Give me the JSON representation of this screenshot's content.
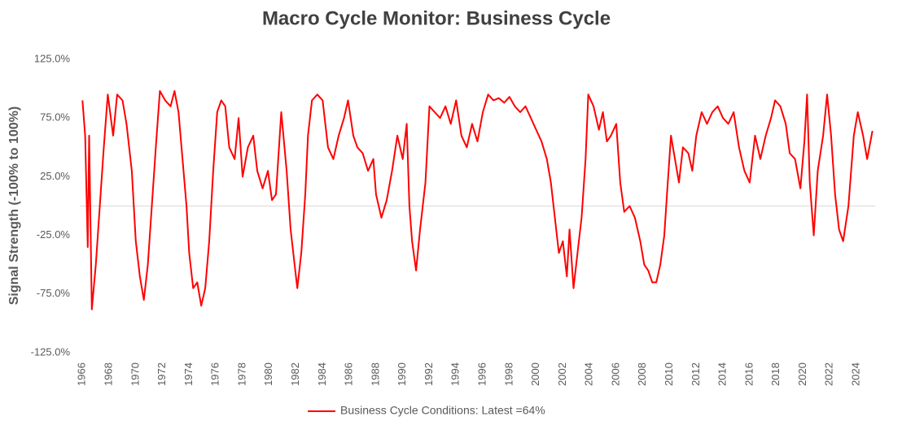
{
  "chart_data": {
    "type": "line",
    "title": "Macro Cycle Monitor: Business Cycle",
    "y_label": "Signal Strength (-100% to 100%)",
    "legend": "bottom",
    "series": [
      {
        "name": "Business Cycle Conditions: Latest =64%",
        "color": "#ff0000",
        "x": [
          1966.0,
          1966.2,
          1966.4,
          1966.5,
          1966.7,
          1967.0,
          1967.3,
          1967.6,
          1967.9,
          1968.3,
          1968.6,
          1969.0,
          1969.3,
          1969.7,
          1970.0,
          1970.3,
          1970.6,
          1970.9,
          1971.2,
          1971.5,
          1971.8,
          1972.2,
          1972.6,
          1972.9,
          1973.2,
          1973.5,
          1973.8,
          1974.0,
          1974.3,
          1974.6,
          1974.9,
          1975.2,
          1975.5,
          1975.8,
          1976.1,
          1976.4,
          1976.7,
          1977.0,
          1977.4,
          1977.7,
          1978.0,
          1978.4,
          1978.8,
          1979.1,
          1979.5,
          1979.9,
          1980.2,
          1980.5,
          1980.9,
          1981.3,
          1981.6,
          1981.9,
          1982.1,
          1982.4,
          1982.7,
          1982.9,
          1983.2,
          1983.6,
          1984.0,
          1984.4,
          1984.8,
          1985.2,
          1985.6,
          1985.9,
          1986.3,
          1986.6,
          1987.0,
          1987.4,
          1987.8,
          1988.0,
          1988.4,
          1988.8,
          1989.2,
          1989.6,
          1990.0,
          1990.3,
          1990.5,
          1990.7,
          1991.0,
          1991.3,
          1991.7,
          1992.0,
          1992.4,
          1992.8,
          1993.2,
          1993.6,
          1994.0,
          1994.4,
          1994.8,
          1995.2,
          1995.6,
          1996.0,
          1996.4,
          1996.8,
          1997.2,
          1997.6,
          1998.0,
          1998.4,
          1998.8,
          1999.2,
          1999.6,
          2000.0,
          2000.4,
          2000.8,
          2001.1,
          2001.4,
          2001.7,
          2002.0,
          2002.3,
          2002.5,
          2002.8,
          2003.1,
          2003.4,
          2003.7,
          2003.9,
          2004.3,
          2004.7,
          2005.0,
          2005.3,
          2005.6,
          2006.0,
          2006.3,
          2006.6,
          2007.0,
          2007.4,
          2007.8,
          2008.1,
          2008.4,
          2008.7,
          2009.0,
          2009.3,
          2009.6,
          2009.8,
          2010.1,
          2010.4,
          2010.7,
          2011.0,
          2011.4,
          2011.7,
          2012.0,
          2012.4,
          2012.8,
          2013.2,
          2013.6,
          2014.0,
          2014.4,
          2014.8,
          2015.2,
          2015.6,
          2016.0,
          2016.4,
          2016.8,
          2017.2,
          2017.6,
          2017.9,
          2018.3,
          2018.7,
          2019.0,
          2019.4,
          2019.8,
          2020.1,
          2020.3,
          2020.5,
          2020.8,
          2021.1,
          2021.5,
          2021.8,
          2022.1,
          2022.4,
          2022.7,
          2023.0,
          2023.4,
          2023.8,
          2024.1,
          2024.5,
          2024.8,
          2025.2
        ],
        "values": [
          90,
          60,
          -35,
          60,
          -88,
          -50,
          0,
          50,
          95,
          60,
          95,
          90,
          70,
          30,
          -30,
          -60,
          -80,
          -50,
          0,
          50,
          98,
          90,
          85,
          98,
          80,
          40,
          0,
          -40,
          -70,
          -65,
          -85,
          -70,
          -30,
          30,
          80,
          90,
          85,
          50,
          40,
          75,
          25,
          50,
          60,
          30,
          15,
          30,
          5,
          10,
          80,
          30,
          -20,
          -50,
          -70,
          -40,
          10,
          60,
          90,
          95,
          90,
          50,
          40,
          60,
          75,
          90,
          60,
          50,
          45,
          30,
          40,
          10,
          -10,
          5,
          30,
          60,
          40,
          70,
          0,
          -30,
          -55,
          -20,
          20,
          85,
          80,
          75,
          85,
          70,
          90,
          60,
          50,
          70,
          55,
          80,
          95,
          90,
          92,
          88,
          93,
          85,
          80,
          85,
          75,
          65,
          55,
          40,
          20,
          -10,
          -40,
          -30,
          -60,
          -20,
          -70,
          -40,
          -10,
          40,
          95,
          85,
          65,
          80,
          55,
          60,
          70,
          20,
          -5,
          0,
          -10,
          -30,
          -50,
          -55,
          -65,
          -65,
          -50,
          -25,
          10,
          60,
          40,
          20,
          50,
          45,
          30,
          60,
          80,
          70,
          80,
          85,
          75,
          70,
          80,
          50,
          30,
          20,
          60,
          40,
          60,
          75,
          90,
          85,
          70,
          45,
          40,
          15,
          55,
          95,
          20,
          -25,
          30,
          60,
          95,
          60,
          10,
          -20,
          -30,
          0,
          60,
          80,
          60,
          40,
          64
        ]
      }
    ],
    "xlim": [
      1965.8,
      2025.4
    ],
    "xticks": [
      1966,
      1968,
      1970,
      1972,
      1974,
      1976,
      1978,
      1980,
      1982,
      1984,
      1986,
      1988,
      1990,
      1992,
      1994,
      1996,
      1998,
      2000,
      2002,
      2004,
      2006,
      2008,
      2010,
      2012,
      2014,
      2016,
      2018,
      2020,
      2022,
      2024
    ],
    "ylim": [
      -125,
      125
    ],
    "yticks": [
      {
        "value": -125,
        "label": "-125.0%"
      },
      {
        "value": -75,
        "label": "-75.0%"
      },
      {
        "value": -25,
        "label": "-25.0%"
      },
      {
        "value": 25,
        "label": "25.0%"
      },
      {
        "value": 75,
        "label": "75.0%"
      },
      {
        "value": 125,
        "label": "125.0%"
      }
    ]
  }
}
